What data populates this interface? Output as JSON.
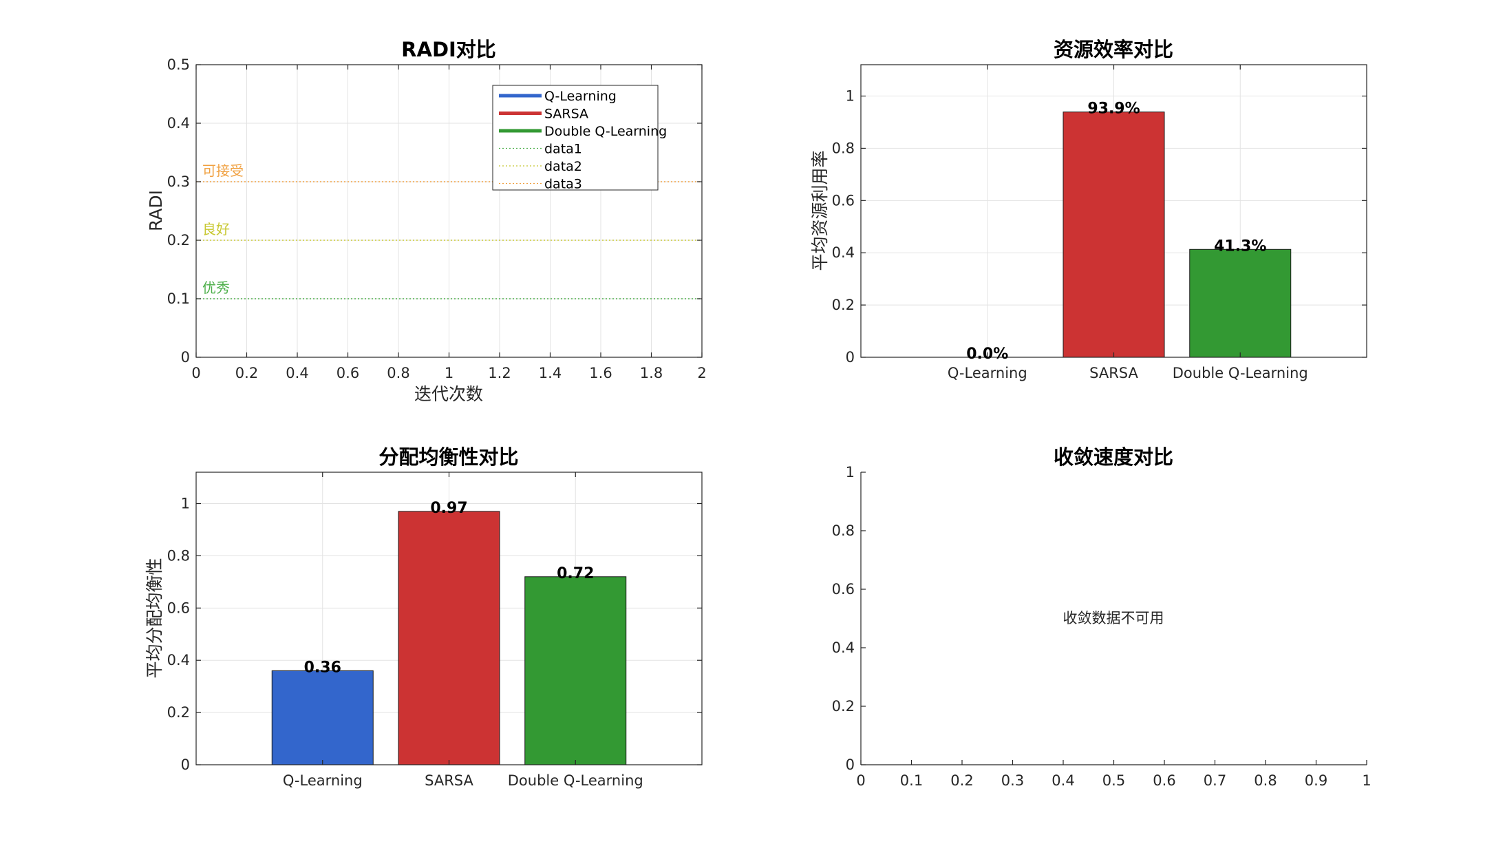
{
  "chart_data": [
    {
      "type": "line",
      "title": "RADI对比",
      "xlabel": "迭代次数",
      "ylabel": "RADI",
      "xlim": [
        0,
        2
      ],
      "ylim": [
        0,
        0.5
      ],
      "xticks": [
        "0",
        "0.2",
        "0.4",
        "0.6",
        "0.8",
        "1",
        "1.2",
        "1.4",
        "1.6",
        "1.8",
        "2"
      ],
      "yticks": [
        "0",
        "0.1",
        "0.2",
        "0.3",
        "0.4",
        "0.5"
      ],
      "grid": true,
      "legend_position": "top-right",
      "series": [
        {
          "name": "Q-Learning",
          "color": "#3366cc",
          "style": "solid",
          "x": [],
          "y": []
        },
        {
          "name": "SARSA",
          "color": "#cc3333",
          "style": "solid",
          "x": [],
          "y": []
        },
        {
          "name": "Double Q-Learning",
          "color": "#339933",
          "style": "solid",
          "x": [],
          "y": []
        },
        {
          "name": "data1",
          "color": "#4daf4a",
          "style": "dotted",
          "x": [
            0,
            2
          ],
          "y": [
            0.1,
            0.1
          ]
        },
        {
          "name": "data2",
          "color": "#c8c832",
          "style": "dotted",
          "x": [
            0,
            2
          ],
          "y": [
            0.2,
            0.2
          ]
        },
        {
          "name": "data3",
          "color": "#f0a040",
          "style": "dotted",
          "x": [
            0,
            2
          ],
          "y": [
            0.3,
            0.3
          ]
        }
      ],
      "annotations": [
        {
          "text": "可接受",
          "y": 0.3,
          "color": "#f0a040"
        },
        {
          "text": "良好",
          "y": 0.2,
          "color": "#c8c832"
        },
        {
          "text": "优秀",
          "y": 0.1,
          "color": "#4daf4a"
        }
      ]
    },
    {
      "type": "bar",
      "title": "资源效率对比",
      "xlabel": "",
      "ylabel": "平均资源利用率",
      "ylim": [
        0,
        1.12
      ],
      "yticks": [
        "0",
        "0.2",
        "0.4",
        "0.6",
        "0.8",
        "1"
      ],
      "grid": true,
      "categories": [
        "Q-Learning",
        "SARSA",
        "Double Q-Learning"
      ],
      "values": [
        0.0,
        0.939,
        0.413
      ],
      "colors": [
        "#3366cc",
        "#cc3333",
        "#339933"
      ],
      "value_labels": [
        "0.0%",
        "93.9%",
        "41.3%"
      ]
    },
    {
      "type": "bar",
      "title": "分配均衡性对比",
      "xlabel": "",
      "ylabel": "平均分配均衡性",
      "ylim": [
        0,
        1.12
      ],
      "yticks": [
        "0",
        "0.2",
        "0.4",
        "0.6",
        "0.8",
        "1"
      ],
      "grid": true,
      "categories": [
        "Q-Learning",
        "SARSA",
        "Double Q-Learning"
      ],
      "values": [
        0.36,
        0.97,
        0.72
      ],
      "colors": [
        "#3366cc",
        "#cc3333",
        "#339933"
      ],
      "value_labels": [
        "0.36",
        "0.97",
        "0.72"
      ]
    },
    {
      "type": "line",
      "title": "收敛速度对比",
      "xlabel": "",
      "ylabel": "",
      "xlim": [
        0,
        1
      ],
      "ylim": [
        0,
        1
      ],
      "xticks": [
        "0",
        "0.1",
        "0.2",
        "0.3",
        "0.4",
        "0.5",
        "0.6",
        "0.7",
        "0.8",
        "0.9",
        "1"
      ],
      "yticks": [
        "0",
        "0.2",
        "0.4",
        "0.6",
        "0.8",
        "1"
      ],
      "grid": false,
      "series": [],
      "message": "收敛数据不可用"
    }
  ]
}
